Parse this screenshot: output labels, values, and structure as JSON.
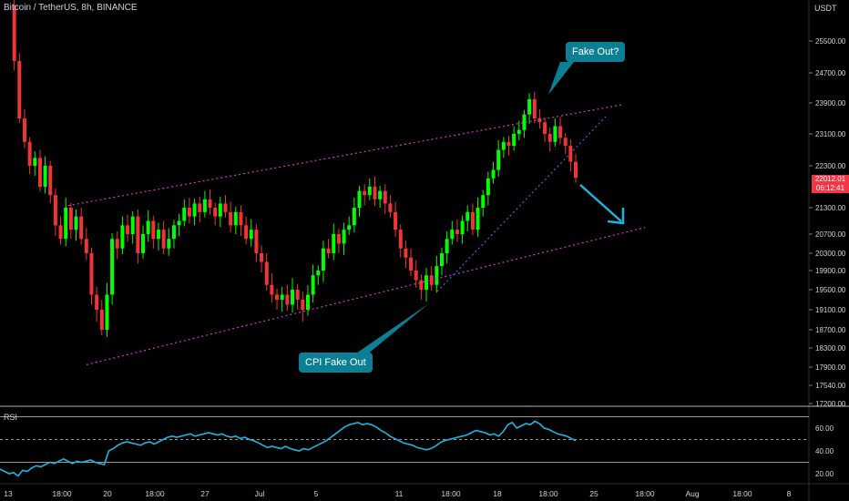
{
  "chart_title": "Bitcoin / TetherUS, 8h, BINANCE",
  "currency": "USDT",
  "rsi_label": "RSI",
  "callouts": {
    "fake_out": "Fake Out?",
    "cpi_fake_out": "CPI Fake Out"
  },
  "last_price": "22012.01",
  "countdown": "06:12:41",
  "colors": {
    "up": "#26a69a",
    "up_bright": "#00ff00",
    "down": "#ef3535",
    "channel": "#d13ad1",
    "rsi": "#1fb4e0",
    "callout": "#0b7f93",
    "arrow": "#1fb4e0"
  },
  "chart_data": [
    {
      "type": "candlestick",
      "title": "Bitcoin / TetherUS, 8h, BINANCE",
      "ylabel": "USDT",
      "y_ticks": [
        25500,
        24700,
        23900,
        23100,
        22300,
        21300,
        20700,
        20300,
        19900,
        19500,
        19100,
        18700,
        18300,
        17900,
        17540,
        17200
      ],
      "x_ticks": [
        "13",
        "18:00",
        "20",
        "18:00",
        "27",
        "Jul",
        "5",
        "11",
        "18:00",
        "18",
        "18:00",
        "25",
        "18:00",
        "Aug",
        "18:00",
        "8"
      ],
      "annotations": [
        "Fake Out?",
        "CPI Fake Out"
      ],
      "last_price": 22012.01,
      "close_series": [
        26400,
        25000,
        23500,
        22900,
        22300,
        22500,
        21800,
        22300,
        21600,
        20900,
        20600,
        21300,
        20800,
        21100,
        20600,
        20300,
        19400,
        19100,
        18700,
        19400,
        20600,
        20400,
        20900,
        20700,
        21100,
        20300,
        20700,
        21000,
        20600,
        20800,
        20400,
        20600,
        20900,
        21000,
        21300,
        21100,
        21400,
        21200,
        21500,
        21300,
        21100,
        21400,
        21200,
        20900,
        21200,
        20900,
        20600,
        20800,
        20300,
        20100,
        19600,
        19400,
        19300,
        19400,
        19200,
        19500,
        19300,
        19100,
        19400,
        19800,
        19900,
        20400,
        20300,
        20700,
        20500,
        20800,
        20900,
        21300,
        21700,
        21600,
        21800,
        21500,
        21700,
        21400,
        21200,
        20800,
        20400,
        20200,
        19900,
        19700,
        19500,
        19800,
        19600,
        20000,
        20300,
        20600,
        20800,
        20700,
        21000,
        21200,
        20800,
        21300,
        21600,
        22000,
        22200,
        22700,
        22900,
        22800,
        23100,
        23200,
        23600,
        24000,
        23500,
        23400,
        23100,
        22900,
        23300,
        23000,
        22800,
        22400,
        22012.01
      ],
      "channel_upper": {
        "start": 21350,
        "end": 23850
      },
      "channel_lower": {
        "start": 17950,
        "end": 20850
      }
    },
    {
      "type": "line",
      "title": "RSI",
      "y_ticks": [
        60,
        40,
        20
      ],
      "bands": [
        70,
        50,
        30
      ],
      "values": [
        24,
        22,
        20,
        21,
        18,
        23,
        22,
        25,
        27,
        26,
        28,
        30,
        29,
        31,
        33,
        31,
        29,
        31,
        30,
        31,
        32,
        30,
        29,
        28,
        40,
        42,
        45,
        47,
        48,
        47,
        46,
        45,
        47,
        48,
        46,
        48,
        50,
        52,
        53,
        52,
        53,
        54,
        55,
        53,
        54,
        55,
        56,
        55,
        54,
        55,
        53,
        52,
        53,
        51,
        52,
        50,
        49,
        47,
        45,
        43,
        44,
        43,
        42,
        44,
        42,
        41,
        40,
        42,
        41,
        43,
        45,
        47,
        49,
        52,
        55,
        58,
        61,
        63,
        64,
        65,
        63,
        64,
        63,
        61,
        58,
        56,
        53,
        51,
        49,
        47,
        46,
        45,
        43,
        42,
        41,
        42,
        44,
        47,
        49,
        50,
        51,
        52,
        53,
        54,
        56,
        58,
        57,
        56,
        54,
        55,
        53,
        57,
        63,
        65,
        60,
        62,
        64,
        63,
        66,
        64,
        60,
        59,
        57,
        55,
        54,
        53,
        51,
        49
      ]
    }
  ]
}
